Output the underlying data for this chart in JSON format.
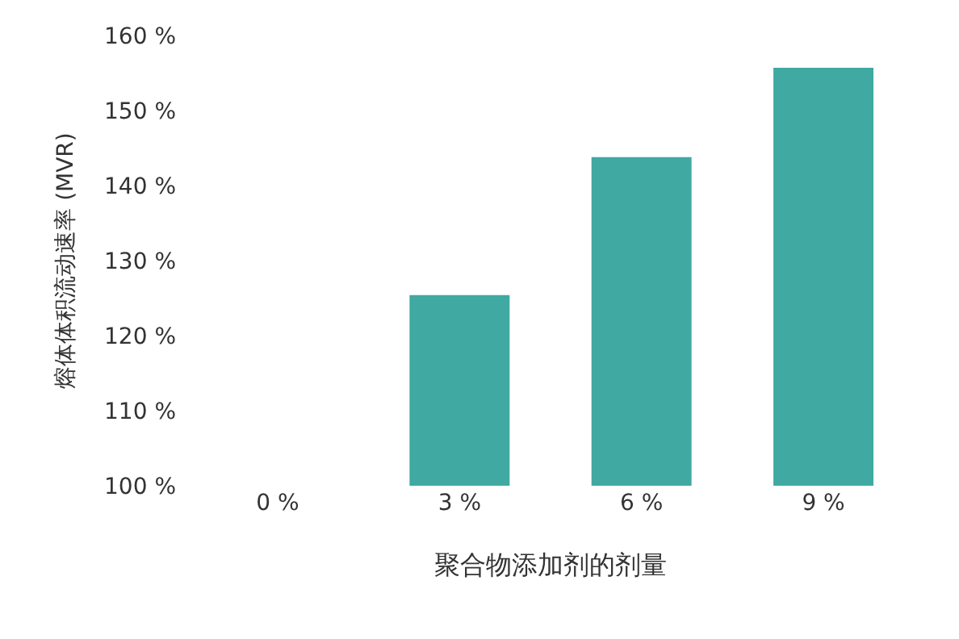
{
  "chart_data": {
    "type": "bar",
    "xlabel": "聚合物添加剂的剂量",
    "ylabel": "熔体体积流动速率 (MVR)",
    "categories": [
      "0 %",
      "3 %",
      "6 %",
      "9 %"
    ],
    "values": [
      100,
      125.4,
      143.8,
      155.7
    ],
    "color": "#3fa9a2",
    "ylim": [
      100,
      160
    ],
    "yticks": [
      {
        "value": 100,
        "label": "100 %"
      },
      {
        "value": 110,
        "label": "110 %"
      },
      {
        "value": 120,
        "label": "120 %"
      },
      {
        "value": 130,
        "label": "130 %"
      },
      {
        "value": 140,
        "label": "140 %"
      },
      {
        "value": 150,
        "label": "150 %"
      },
      {
        "value": 160,
        "label": "160 %"
      }
    ]
  }
}
